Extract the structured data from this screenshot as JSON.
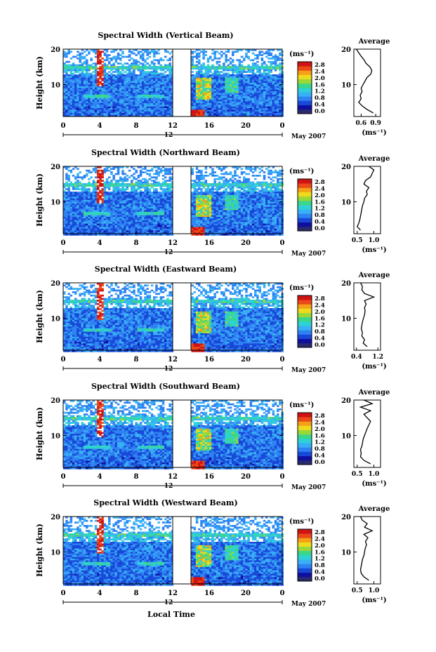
{
  "figure": {
    "xlabel": "Local Time",
    "colorbar_unit": "(ms⁻¹)",
    "colorbar_ticks": [
      "0.0",
      "0.4",
      "0.8",
      "1.2",
      "1.6",
      "2.0",
      "2.4",
      "2.8"
    ],
    "avg_title": "Average",
    "avg_xlabel": "(ms⁻¹)",
    "date_label": "May 2007",
    "date_day": "12",
    "colors": {
      "colormap": [
        "#2a2a6e",
        "#1010a0",
        "#1848d8",
        "#2e82f2",
        "#38b0f5",
        "#2ed2d2",
        "#3cd68a",
        "#9ad83a",
        "#eedc1c",
        "#f4a018",
        "#ec4818",
        "#d01414"
      ]
    }
  },
  "chart_data": [
    {
      "type": "heatmap",
      "title": "Spectral Width (Vertical Beam)",
      "ylabel": "Height (km)",
      "x_ticks": [
        "0",
        "4",
        "8",
        "12",
        "16",
        "20",
        "0"
      ],
      "y_ticks": [
        "10",
        "20"
      ],
      "xlim": [
        0,
        24
      ],
      "ylim": [
        1,
        20
      ],
      "gap_hours": [
        12,
        14
      ],
      "avg_profile": {
        "x_ticks": [
          "0.6",
          "0.9"
        ],
        "y_ticks": [
          "10",
          "20"
        ],
        "xlim": [
          0.45,
          1.0
        ],
        "height": [
          2,
          3,
          4,
          5,
          6,
          7,
          8,
          9,
          10,
          11,
          12,
          13,
          14,
          15,
          16,
          17,
          18,
          19,
          20
        ],
        "value": [
          0.85,
          0.72,
          0.62,
          0.55,
          0.6,
          0.58,
          0.62,
          0.6,
          0.64,
          0.68,
          0.72,
          0.8,
          0.82,
          0.78,
          0.7,
          0.66,
          0.6,
          0.55,
          0.5
        ]
      }
    },
    {
      "type": "heatmap",
      "title": "Spectral Width (Northward Beam)",
      "ylabel": "Height (km)",
      "x_ticks": [
        "0",
        "4",
        "8",
        "12",
        "16",
        "20",
        "0"
      ],
      "y_ticks": [
        "10",
        "20"
      ],
      "xlim": [
        0,
        24
      ],
      "ylim": [
        1,
        20
      ],
      "gap_hours": [
        12,
        14
      ],
      "avg_profile": {
        "x_ticks": [
          "0.5",
          "1.0"
        ],
        "y_ticks": [
          "10",
          "20"
        ],
        "xlim": [
          0.4,
          1.2
        ],
        "height": [
          2,
          3,
          4,
          5,
          6,
          7,
          8,
          9,
          10,
          11,
          12,
          13,
          14,
          15,
          16,
          17,
          18,
          19,
          20
        ],
        "value": [
          0.6,
          0.5,
          0.55,
          0.58,
          0.6,
          0.62,
          0.64,
          0.66,
          0.7,
          0.72,
          0.8,
          0.78,
          0.85,
          0.7,
          0.75,
          0.9,
          0.95,
          1.0,
          0.85
        ]
      }
    },
    {
      "type": "heatmap",
      "title": "Spectral Width (Eastward Beam)",
      "ylabel": "Height (km)",
      "x_ticks": [
        "0",
        "4",
        "8",
        "12",
        "16",
        "20",
        "0"
      ],
      "y_ticks": [
        "10",
        "20"
      ],
      "xlim": [
        0,
        24
      ],
      "ylim": [
        1,
        20
      ],
      "gap_hours": [
        12,
        14
      ],
      "avg_profile": {
        "x_ticks": [
          "0.4",
          "1.2"
        ],
        "y_ticks": [
          "10",
          "20"
        ],
        "xlim": [
          0.3,
          1.3
        ],
        "height": [
          2,
          3,
          4,
          5,
          6,
          7,
          8,
          9,
          10,
          11,
          12,
          13,
          14,
          15,
          16,
          17,
          18,
          19,
          20
        ],
        "value": [
          0.8,
          0.65,
          0.7,
          0.6,
          0.62,
          0.58,
          0.6,
          0.62,
          0.66,
          0.7,
          0.72,
          0.7,
          0.76,
          0.7,
          1.05,
          0.7,
          0.6,
          0.62,
          0.55
        ]
      }
    },
    {
      "type": "heatmap",
      "title": "Spectral Width (Southward Beam)",
      "ylabel": "Height (km)",
      "x_ticks": [
        "0",
        "4",
        "8",
        "12",
        "16",
        "20",
        "0"
      ],
      "y_ticks": [
        "10",
        "20"
      ],
      "xlim": [
        0,
        24
      ],
      "ylim": [
        1,
        20
      ],
      "gap_hours": [
        12,
        14
      ],
      "avg_profile": {
        "x_ticks": [
          "0.5",
          "1.0"
        ],
        "y_ticks": [
          "10",
          "20"
        ],
        "xlim": [
          0.4,
          1.2
        ],
        "height": [
          2,
          3,
          4,
          5,
          6,
          7,
          8,
          9,
          10,
          11,
          12,
          13,
          14,
          15,
          16,
          17,
          18,
          19,
          20
        ],
        "value": [
          0.9,
          0.7,
          0.6,
          0.62,
          0.6,
          0.64,
          0.66,
          0.68,
          0.72,
          0.76,
          0.8,
          0.85,
          0.9,
          0.8,
          0.7,
          0.9,
          0.6,
          0.95,
          0.7
        ]
      }
    },
    {
      "type": "heatmap",
      "title": "Spectral Width (Westward Beam)",
      "ylabel": "Height (km)",
      "x_ticks": [
        "0",
        "4",
        "8",
        "12",
        "16",
        "20",
        "0"
      ],
      "y_ticks": [
        "10",
        "20"
      ],
      "xlim": [
        0,
        24
      ],
      "ylim": [
        1,
        20
      ],
      "gap_hours": [
        12,
        14
      ],
      "avg_profile": {
        "x_ticks": [
          "0.5",
          "1.0"
        ],
        "y_ticks": [
          "10",
          "20"
        ],
        "xlim": [
          0.4,
          1.2
        ],
        "height": [
          2,
          3,
          4,
          5,
          6,
          7,
          8,
          9,
          10,
          11,
          12,
          13,
          14,
          15,
          16,
          17,
          18,
          19,
          20
        ],
        "value": [
          0.85,
          0.7,
          0.62,
          0.6,
          0.62,
          0.64,
          0.66,
          0.7,
          0.72,
          0.74,
          0.78,
          0.75,
          0.82,
          0.7,
          0.95,
          0.72,
          0.8,
          0.65,
          0.6
        ]
      }
    }
  ]
}
